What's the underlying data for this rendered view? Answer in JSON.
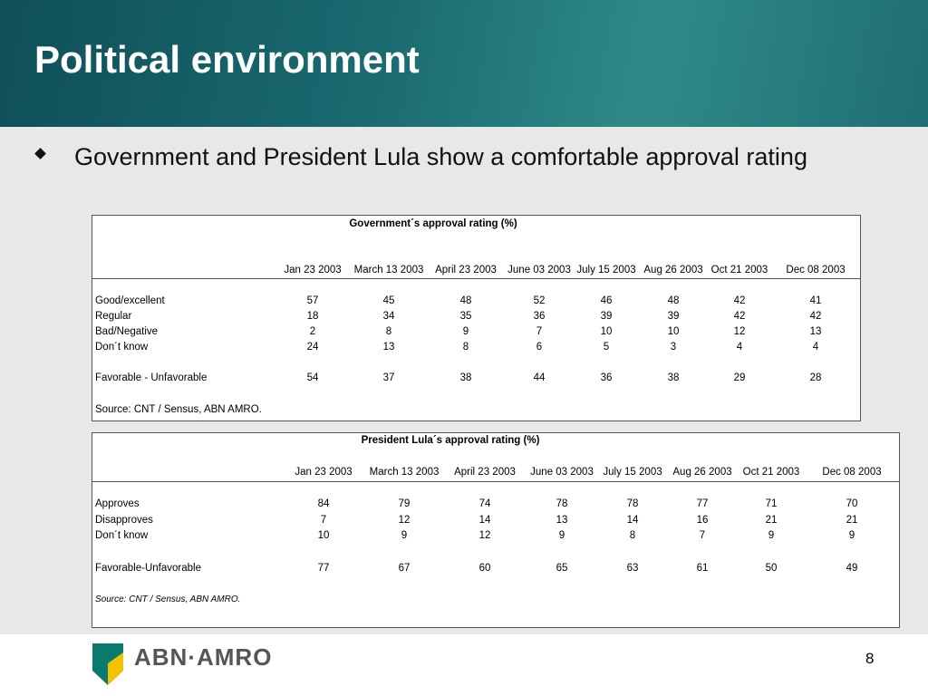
{
  "header": {
    "title": "Political environment"
  },
  "bullet": "Government and President Lula show a comfortable approval rating",
  "table1": {
    "title": "Government´s approval rating (%)",
    "columns": [
      "Jan 23 2003",
      "March 13 2003",
      "April 23 2003",
      "June 03 2003",
      "July 15 2003",
      "Aug 26 2003",
      "Oct 21 2003",
      "Dec 08 2003"
    ],
    "rows": [
      {
        "label": "Good/excellent",
        "values": [
          57,
          45,
          48,
          52,
          46,
          48,
          42,
          41
        ]
      },
      {
        "label": "Regular",
        "values": [
          18,
          34,
          35,
          36,
          39,
          39,
          42,
          42
        ]
      },
      {
        "label": "Bad/Negative",
        "values": [
          2,
          8,
          9,
          7,
          10,
          10,
          12,
          13
        ]
      },
      {
        "label": "Don´t know",
        "values": [
          24,
          13,
          8,
          6,
          5,
          3,
          4,
          4
        ]
      },
      {
        "label": "Favorable - Unfavorable",
        "values": [
          54,
          37,
          38,
          44,
          36,
          38,
          29,
          28
        ]
      }
    ],
    "source": "Source: CNT / Sensus, ABN AMRO."
  },
  "table2": {
    "title": "President Lula´s approval rating (%)",
    "columns": [
      "Jan 23 2003",
      "March 13 2003",
      "April 23 2003",
      "June 03 2003",
      "July 15 2003",
      "Aug 26 2003",
      "Oct 21 2003",
      "Dec 08 2003"
    ],
    "rows": [
      {
        "label": "Approves",
        "values": [
          84,
          79,
          74,
          78,
          78,
          77,
          71,
          70
        ]
      },
      {
        "label": "Disapproves",
        "values": [
          7,
          12,
          14,
          13,
          14,
          16,
          21,
          21
        ]
      },
      {
        "label": "Don´t know",
        "values": [
          10,
          9,
          12,
          9,
          8,
          7,
          9,
          9
        ]
      },
      {
        "label": "Favorable-Unfavorable",
        "values": [
          77,
          67,
          60,
          65,
          63,
          61,
          50,
          49
        ]
      }
    ],
    "source": "Source: CNT / Sensus, ABN AMRO."
  },
  "footer": {
    "logo": "ABN·AMRO",
    "page": "8"
  }
}
